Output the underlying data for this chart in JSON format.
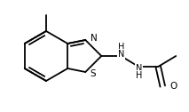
{
  "bg_color": "#ffffff",
  "line_color": "#000000",
  "line_width": 1.3,
  "font_size": 7.0,
  "figsize": [
    2.13,
    1.26
  ],
  "dpi": 100,
  "xlim": [
    0,
    213
  ],
  "ylim": [
    0,
    126
  ]
}
